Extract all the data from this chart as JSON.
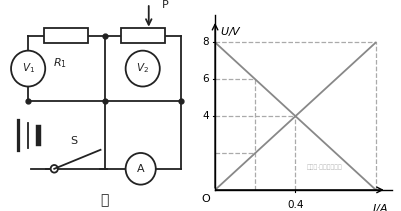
{
  "fig_width": 4.02,
  "fig_height": 2.11,
  "dpi": 100,
  "bg_color": "#ffffff",
  "graph": {
    "xlim": [
      0,
      0.88
    ],
    "ylim": [
      0,
      9.5
    ],
    "xlabel": "I/A",
    "ylabel": "U/V",
    "line1": {
      "x": [
        0,
        0.8
      ],
      "y": [
        8,
        0
      ],
      "color": "#888888",
      "lw": 1.3
    },
    "line2": {
      "x": [
        0,
        0.8
      ],
      "y": [
        0,
        8
      ],
      "color": "#888888",
      "lw": 1.3
    },
    "dashed_color": "#aaaaaa",
    "dashed_lw": 0.9,
    "dashed_lines": [
      {
        "x1": 0.2,
        "y1": 0,
        "x2": 0.2,
        "y2": 6
      },
      {
        "x1": 0.8,
        "y1": 0,
        "x2": 0.8,
        "y2": 8
      },
      {
        "x1": 0,
        "y1": 6,
        "x2": 0.2,
        "y2": 6
      },
      {
        "x1": 0,
        "y1": 2,
        "x2": 0.2,
        "y2": 2
      },
      {
        "x1": 0,
        "y1": 8,
        "x2": 0.8,
        "y2": 8
      },
      {
        "x1": 0.4,
        "y1": 0,
        "x2": 0.4,
        "y2": 4
      },
      {
        "x1": 0,
        "y1": 4,
        "x2": 0.4,
        "y2": 4
      }
    ],
    "ytick_vals": [
      4,
      6,
      8
    ],
    "xtick_val": 0.4,
    "origin": "O"
  }
}
